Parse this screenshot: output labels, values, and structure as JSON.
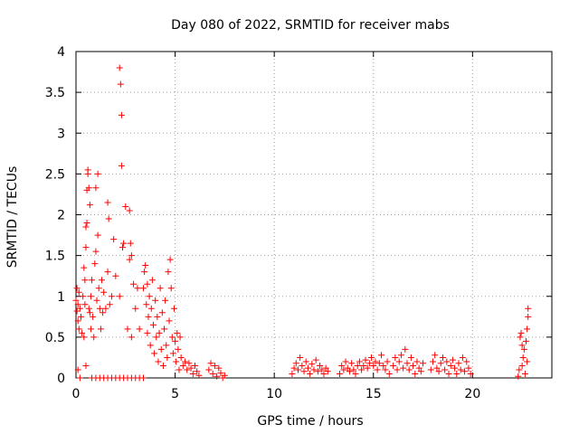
{
  "chart_data": {
    "type": "scatter",
    "title": "Day 080 of 2022, SRMTID for receiver mabs",
    "xlabel": "GPS time / hours",
    "ylabel": "SRMTID / TECUs",
    "xlim": [
      0,
      24
    ],
    "ylim": [
      0,
      4
    ],
    "x_ticks": [
      0,
      5,
      10,
      15,
      20
    ],
    "y_ticks": [
      0,
      0.5,
      1,
      1.5,
      2,
      2.5,
      3,
      3.5,
      4
    ],
    "x_tick_labels": [
      "0",
      "5",
      "10",
      "15",
      "20"
    ],
    "y_tick_labels": [
      "0",
      "0.5",
      "1",
      "1.5",
      "2",
      "2.5",
      "3",
      "3.5",
      "4"
    ],
    "grid": true,
    "marker": "+",
    "marker_color": "#ff0000",
    "series": [
      {
        "name": "SRMTID",
        "points": [
          [
            0.0,
            0.95
          ],
          [
            0.05,
            1.1
          ],
          [
            0.05,
            0.82
          ],
          [
            0.1,
            0.7
          ],
          [
            0.1,
            0.9
          ],
          [
            0.15,
            1.05
          ],
          [
            0.15,
            0.6
          ],
          [
            0.2,
            0.0
          ],
          [
            0.2,
            0.85
          ],
          [
            0.25,
            0.75
          ],
          [
            0.1,
            0.1
          ],
          [
            0.3,
            0.55
          ],
          [
            0.35,
            1.0
          ],
          [
            0.4,
            1.35
          ],
          [
            0.4,
            0.5
          ],
          [
            0.45,
            1.2
          ],
          [
            0.45,
            0.9
          ],
          [
            0.5,
            1.6
          ],
          [
            0.5,
            1.85
          ],
          [
            0.55,
            2.3
          ],
          [
            0.55,
            1.9
          ],
          [
            0.6,
            2.5
          ],
          [
            0.6,
            2.55
          ],
          [
            0.65,
            2.33
          ],
          [
            0.65,
            0.85
          ],
          [
            0.7,
            2.12
          ],
          [
            0.7,
            0.8
          ],
          [
            0.75,
            1.0
          ],
          [
            0.75,
            0.6
          ],
          [
            0.5,
            0.15
          ],
          [
            0.8,
            1.2
          ],
          [
            0.85,
            0.75
          ],
          [
            0.9,
            0.5
          ],
          [
            0.95,
            1.4
          ],
          [
            1.0,
            1.55
          ],
          [
            1.0,
            2.33
          ],
          [
            1.05,
            0.95
          ],
          [
            1.1,
            1.75
          ],
          [
            1.1,
            2.5
          ],
          [
            1.15,
            1.1
          ],
          [
            1.2,
            0.85
          ],
          [
            1.25,
            0.6
          ],
          [
            1.3,
            1.2
          ],
          [
            1.35,
            0.8
          ],
          [
            1.4,
            1.05
          ],
          [
            1.5,
            0.85
          ],
          [
            1.6,
            1.3
          ],
          [
            1.6,
            2.15
          ],
          [
            1.65,
            1.95
          ],
          [
            1.7,
            0.9
          ],
          [
            1.8,
            1.0
          ],
          [
            1.9,
            1.7
          ],
          [
            2.0,
            1.25
          ],
          [
            0.8,
            0.0
          ],
          [
            1.0,
            0.0
          ],
          [
            1.2,
            0.0
          ],
          [
            1.4,
            0.0
          ],
          [
            1.6,
            0.0
          ],
          [
            1.8,
            0.0
          ],
          [
            2.0,
            0.0
          ],
          [
            2.2,
            0.0
          ],
          [
            2.4,
            0.0
          ],
          [
            2.6,
            0.0
          ],
          [
            2.8,
            0.0
          ],
          [
            3.0,
            0.0
          ],
          [
            3.2,
            0.0
          ],
          [
            3.4,
            0.0
          ],
          [
            2.2,
            3.8
          ],
          [
            2.25,
            3.6
          ],
          [
            2.3,
            3.22
          ],
          [
            2.3,
            2.6
          ],
          [
            2.35,
            1.6
          ],
          [
            2.4,
            1.65
          ],
          [
            2.2,
            1.0
          ],
          [
            2.5,
            2.1
          ],
          [
            2.6,
            0.6
          ],
          [
            2.7,
            2.05
          ],
          [
            2.7,
            1.45
          ],
          [
            2.75,
            1.65
          ],
          [
            2.8,
            1.5
          ],
          [
            2.8,
            0.5
          ],
          [
            2.9,
            1.15
          ],
          [
            3.0,
            0.85
          ],
          [
            3.1,
            1.1
          ],
          [
            3.2,
            0.6
          ],
          [
            3.4,
            1.1
          ],
          [
            3.45,
            1.3
          ],
          [
            3.5,
            1.38
          ],
          [
            3.55,
            0.9
          ],
          [
            3.6,
            1.15
          ],
          [
            3.6,
            0.55
          ],
          [
            3.65,
            0.75
          ],
          [
            3.7,
            1.0
          ],
          [
            3.75,
            0.4
          ],
          [
            3.8,
            0.85
          ],
          [
            3.85,
            1.2
          ],
          [
            3.9,
            0.65
          ],
          [
            3.95,
            0.3
          ],
          [
            4.0,
            0.95
          ],
          [
            4.05,
            0.5
          ],
          [
            4.1,
            0.75
          ],
          [
            4.15,
            0.2
          ],
          [
            4.2,
            0.55
          ],
          [
            4.25,
            1.1
          ],
          [
            4.3,
            0.35
          ],
          [
            4.35,
            0.8
          ],
          [
            4.4,
            0.15
          ],
          [
            4.45,
            0.6
          ],
          [
            4.5,
            0.95
          ],
          [
            4.55,
            0.4
          ],
          [
            4.6,
            0.25
          ],
          [
            4.65,
            1.3
          ],
          [
            4.7,
            0.7
          ],
          [
            4.75,
            1.45
          ],
          [
            4.8,
            1.1
          ],
          [
            4.85,
            0.5
          ],
          [
            4.9,
            0.3
          ],
          [
            4.95,
            0.85
          ],
          [
            5.0,
            0.45
          ],
          [
            5.05,
            0.2
          ],
          [
            5.1,
            0.55
          ],
          [
            5.15,
            0.35
          ],
          [
            5.2,
            0.1
          ],
          [
            5.25,
            0.5
          ],
          [
            5.3,
            0.25
          ],
          [
            5.4,
            0.15
          ],
          [
            5.5,
            0.2
          ],
          [
            5.6,
            0.1
          ],
          [
            5.7,
            0.18
          ],
          [
            5.8,
            0.12
          ],
          [
            5.9,
            0.05
          ],
          [
            6.0,
            0.15
          ],
          [
            6.1,
            0.08
          ],
          [
            6.2,
            0.03
          ],
          [
            6.7,
            0.1
          ],
          [
            6.8,
            0.18
          ],
          [
            6.9,
            0.05
          ],
          [
            7.0,
            0.15
          ],
          [
            7.1,
            0.02
          ],
          [
            7.2,
            0.12
          ],
          [
            7.3,
            0.06
          ],
          [
            7.4,
            0.0
          ],
          [
            7.5,
            0.03
          ],
          [
            10.9,
            0.05
          ],
          [
            11.0,
            0.12
          ],
          [
            11.1,
            0.18
          ],
          [
            11.2,
            0.1
          ],
          [
            11.3,
            0.25
          ],
          [
            11.4,
            0.15
          ],
          [
            11.5,
            0.08
          ],
          [
            11.6,
            0.2
          ],
          [
            11.7,
            0.12
          ],
          [
            11.8,
            0.05
          ],
          [
            11.9,
            0.17
          ],
          [
            12.0,
            0.1
          ],
          [
            12.1,
            0.22
          ],
          [
            12.2,
            0.08
          ],
          [
            12.3,
            0.15
          ],
          [
            12.4,
            0.1
          ],
          [
            12.5,
            0.05
          ],
          [
            12.6,
            0.12
          ],
          [
            12.7,
            0.08
          ],
          [
            13.3,
            0.05
          ],
          [
            13.4,
            0.15
          ],
          [
            13.5,
            0.1
          ],
          [
            13.6,
            0.2
          ],
          [
            13.7,
            0.12
          ],
          [
            13.8,
            0.08
          ],
          [
            13.9,
            0.18
          ],
          [
            14.0,
            0.1
          ],
          [
            14.1,
            0.05
          ],
          [
            14.2,
            0.15
          ],
          [
            14.3,
            0.2
          ],
          [
            14.4,
            0.1
          ],
          [
            14.5,
            0.15
          ],
          [
            14.6,
            0.22
          ],
          [
            14.7,
            0.12
          ],
          [
            14.8,
            0.18
          ],
          [
            14.9,
            0.25
          ],
          [
            15.0,
            0.15
          ],
          [
            15.1,
            0.2
          ],
          [
            15.2,
            0.1
          ],
          [
            15.3,
            0.18
          ],
          [
            15.4,
            0.28
          ],
          [
            15.5,
            0.15
          ],
          [
            15.6,
            0.1
          ],
          [
            15.7,
            0.2
          ],
          [
            15.8,
            0.05
          ],
          [
            16.0,
            0.15
          ],
          [
            16.1,
            0.25
          ],
          [
            16.2,
            0.1
          ],
          [
            16.3,
            0.2
          ],
          [
            16.4,
            0.28
          ],
          [
            16.5,
            0.12
          ],
          [
            16.6,
            0.35
          ],
          [
            16.7,
            0.18
          ],
          [
            16.8,
            0.1
          ],
          [
            16.9,
            0.25
          ],
          [
            17.0,
            0.15
          ],
          [
            17.1,
            0.05
          ],
          [
            17.2,
            0.2
          ],
          [
            17.3,
            0.12
          ],
          [
            17.4,
            0.08
          ],
          [
            17.5,
            0.18
          ],
          [
            17.9,
            0.1
          ],
          [
            18.0,
            0.2
          ],
          [
            18.1,
            0.28
          ],
          [
            18.2,
            0.12
          ],
          [
            18.3,
            0.08
          ],
          [
            18.4,
            0.18
          ],
          [
            18.5,
            0.25
          ],
          [
            18.6,
            0.1
          ],
          [
            18.7,
            0.2
          ],
          [
            18.8,
            0.05
          ],
          [
            18.9,
            0.15
          ],
          [
            19.0,
            0.22
          ],
          [
            19.1,
            0.12
          ],
          [
            19.2,
            0.05
          ],
          [
            19.3,
            0.18
          ],
          [
            19.4,
            0.1
          ],
          [
            19.5,
            0.25
          ],
          [
            19.6,
            0.08
          ],
          [
            19.7,
            0.2
          ],
          [
            19.8,
            0.12
          ],
          [
            19.9,
            0.05
          ],
          [
            22.3,
            0.02
          ],
          [
            22.35,
            0.1
          ],
          [
            22.4,
            0.5
          ],
          [
            22.45,
            0.55
          ],
          [
            22.5,
            0.4
          ],
          [
            22.5,
            0.15
          ],
          [
            22.55,
            0.25
          ],
          [
            22.6,
            0.35
          ],
          [
            22.65,
            0.05
          ],
          [
            22.7,
            0.45
          ],
          [
            22.75,
            0.6
          ],
          [
            22.75,
            0.2
          ],
          [
            22.8,
            0.75
          ],
          [
            22.8,
            0.85
          ]
        ]
      }
    ]
  }
}
